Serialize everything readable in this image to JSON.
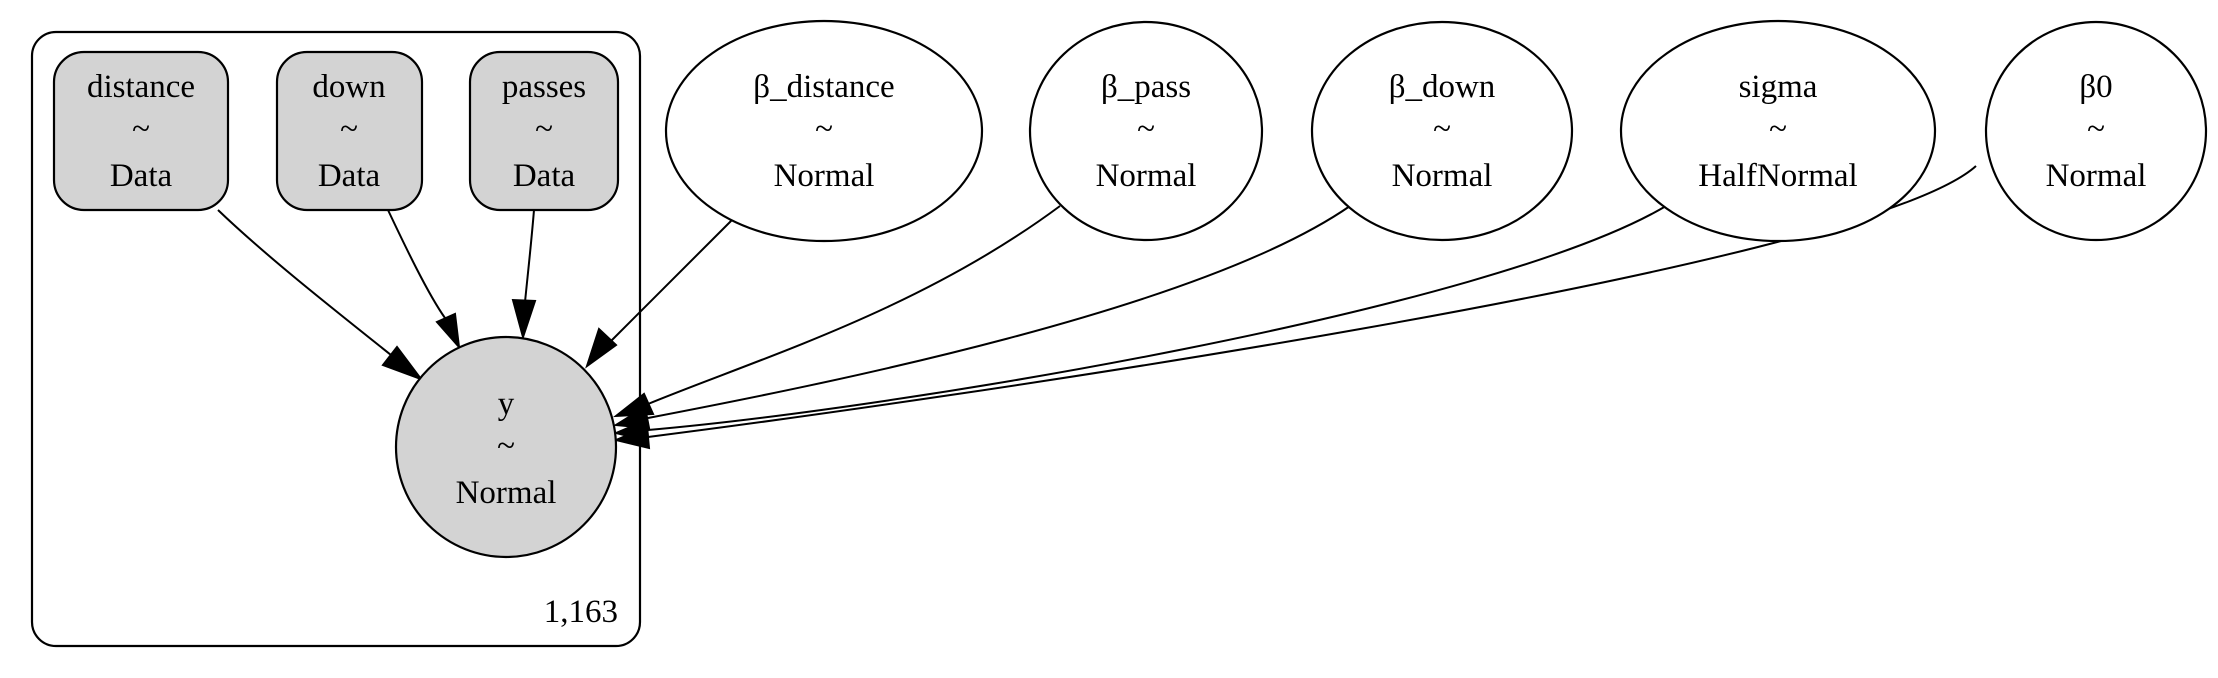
{
  "diagram": {
    "type": "graphical-model",
    "colors": {
      "observed_fill": "#d3d3d3",
      "latent_fill": "#ffffff",
      "stroke": "#000000"
    },
    "plate": {
      "label": "1,163"
    },
    "tilde": "~",
    "nodes": {
      "distance": {
        "name": "distance",
        "dist": "Data"
      },
      "down": {
        "name": "down",
        "dist": "Data"
      },
      "passes": {
        "name": "passes",
        "dist": "Data"
      },
      "beta_distance": {
        "name": "β_distance",
        "dist": "Normal"
      },
      "beta_pass": {
        "name": "β_pass",
        "dist": "Normal"
      },
      "beta_down": {
        "name": "β_down",
        "dist": "Normal"
      },
      "sigma": {
        "name": "sigma",
        "dist": "HalfNormal"
      },
      "beta0": {
        "name": "β0",
        "dist": "Normal"
      },
      "y": {
        "name": "y",
        "dist": "Normal"
      }
    },
    "edges": [
      [
        "distance",
        "y"
      ],
      [
        "down",
        "y"
      ],
      [
        "passes",
        "y"
      ],
      [
        "beta_distance",
        "y"
      ],
      [
        "beta_pass",
        "y"
      ],
      [
        "beta_down",
        "y"
      ],
      [
        "sigma",
        "y"
      ],
      [
        "beta0",
        "y"
      ]
    ]
  }
}
